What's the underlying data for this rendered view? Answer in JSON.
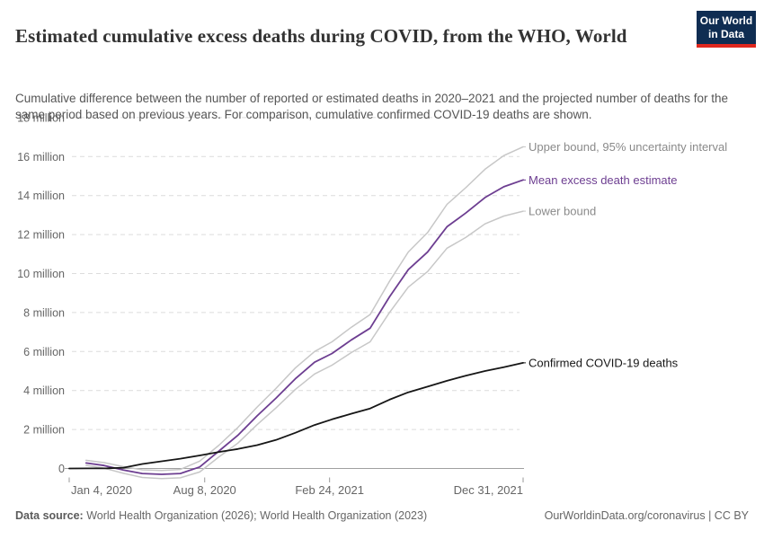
{
  "header": {
    "title": "Estimated cumulative excess deaths during COVID, from the WHO, World",
    "subtitle": "Cumulative difference between the number of reported or estimated deaths in 2020–2021 and the projected number of deaths for the same period based on previous years. For comparison, cumulative confirmed COVID-19 deaths are shown.",
    "logo": {
      "line1": "Our World",
      "line2": "in Data",
      "bg_color": "#0f2d52",
      "stripe_color": "#e0271e"
    }
  },
  "chart_data": {
    "type": "line",
    "title": "Estimated cumulative excess deaths during COVID, from the WHO, World",
    "x_axis": {
      "unit": "date",
      "range_days": [
        0,
        727
      ],
      "ticks": [
        {
          "day": 0,
          "label": "Jan 4, 2020"
        },
        {
          "day": 217,
          "label": "Aug 8, 2020"
        },
        {
          "day": 417,
          "label": "Feb 24, 2021"
        },
        {
          "day": 727,
          "label": "Dec 31, 2021"
        }
      ]
    },
    "y_axis": {
      "unit": "million deaths",
      "range": [
        -0.6,
        18
      ],
      "grid": true,
      "ticks": [
        {
          "v": 0,
          "label": "0"
        },
        {
          "v": 2,
          "label": "2 million"
        },
        {
          "v": 4,
          "label": "4 million"
        },
        {
          "v": 6,
          "label": "6 million"
        },
        {
          "v": 8,
          "label": "8 million"
        },
        {
          "v": 10,
          "label": "10 million"
        },
        {
          "v": 12,
          "label": "12 million"
        },
        {
          "v": 14,
          "label": "14 million"
        },
        {
          "v": 16,
          "label": "16 million"
        },
        {
          "v": 18,
          "label": "18 million"
        }
      ]
    },
    "legend_position": "right-end-labels",
    "series": [
      {
        "name": "upper-bound",
        "label": "Upper bound, 95% uncertainty interval",
        "color": "#c7c7c7",
        "label_color": "#8a8a8a",
        "width": 1.5,
        "points": [
          [
            27,
            0.42
          ],
          [
            56,
            0.3
          ],
          [
            87,
            0.09
          ],
          [
            117,
            -0.07
          ],
          [
            148,
            -0.1
          ],
          [
            178,
            -0.05
          ],
          [
            209,
            0.38
          ],
          [
            240,
            1.2
          ],
          [
            270,
            2.1
          ],
          [
            301,
            3.15
          ],
          [
            331,
            4.1
          ],
          [
            362,
            5.15
          ],
          [
            393,
            6.0
          ],
          [
            421,
            6.5
          ],
          [
            452,
            7.25
          ],
          [
            482,
            7.9
          ],
          [
            513,
            9.6
          ],
          [
            543,
            11.1
          ],
          [
            574,
            12.1
          ],
          [
            605,
            13.55
          ],
          [
            635,
            14.4
          ],
          [
            666,
            15.35
          ],
          [
            696,
            16.05
          ],
          [
            727,
            16.5
          ]
        ]
      },
      {
        "name": "lower-bound",
        "label": "Lower bound",
        "color": "#c7c7c7",
        "label_color": "#8a8a8a",
        "width": 1.5,
        "points": [
          [
            27,
            0.16
          ],
          [
            56,
            0.02
          ],
          [
            87,
            -0.25
          ],
          [
            117,
            -0.46
          ],
          [
            148,
            -0.52
          ],
          [
            178,
            -0.48
          ],
          [
            209,
            -0.18
          ],
          [
            240,
            0.6
          ],
          [
            270,
            1.3
          ],
          [
            301,
            2.25
          ],
          [
            331,
            3.1
          ],
          [
            362,
            4.05
          ],
          [
            393,
            4.85
          ],
          [
            421,
            5.3
          ],
          [
            452,
            5.95
          ],
          [
            482,
            6.5
          ],
          [
            513,
            8.0
          ],
          [
            543,
            9.3
          ],
          [
            574,
            10.1
          ],
          [
            605,
            11.3
          ],
          [
            635,
            11.85
          ],
          [
            666,
            12.55
          ],
          [
            696,
            12.95
          ],
          [
            727,
            13.2
          ]
        ]
      },
      {
        "name": "mean-excess-death-estimate",
        "label": "Mean excess death estimate",
        "color": "#6d3e91",
        "label_color": "#6d3e91",
        "width": 1.8,
        "points": [
          [
            27,
            0.28
          ],
          [
            56,
            0.15
          ],
          [
            87,
            -0.08
          ],
          [
            117,
            -0.26
          ],
          [
            148,
            -0.3
          ],
          [
            178,
            -0.26
          ],
          [
            209,
            0.08
          ],
          [
            240,
            0.9
          ],
          [
            270,
            1.7
          ],
          [
            301,
            2.7
          ],
          [
            331,
            3.6
          ],
          [
            362,
            4.6
          ],
          [
            393,
            5.45
          ],
          [
            421,
            5.9
          ],
          [
            452,
            6.6
          ],
          [
            482,
            7.2
          ],
          [
            513,
            8.8
          ],
          [
            543,
            10.2
          ],
          [
            574,
            11.1
          ],
          [
            605,
            12.4
          ],
          [
            635,
            13.1
          ],
          [
            666,
            13.9
          ],
          [
            696,
            14.45
          ],
          [
            727,
            14.8
          ]
        ]
      },
      {
        "name": "confirmed-covid-19-deaths",
        "label": "Confirmed COVID-19 deaths",
        "color": "#161616",
        "label_color": "#161616",
        "width": 1.8,
        "points": [
          [
            0,
            0
          ],
          [
            30,
            0.003
          ],
          [
            60,
            0.007
          ],
          [
            87,
            0.042
          ],
          [
            117,
            0.23
          ],
          [
            148,
            0.37
          ],
          [
            178,
            0.5
          ],
          [
            209,
            0.67
          ],
          [
            240,
            0.85
          ],
          [
            270,
            1.0
          ],
          [
            301,
            1.2
          ],
          [
            331,
            1.46
          ],
          [
            362,
            1.83
          ],
          [
            393,
            2.23
          ],
          [
            421,
            2.52
          ],
          [
            452,
            2.81
          ],
          [
            482,
            3.08
          ],
          [
            513,
            3.53
          ],
          [
            543,
            3.91
          ],
          [
            574,
            4.2
          ],
          [
            605,
            4.5
          ],
          [
            635,
            4.76
          ],
          [
            666,
            5.0
          ],
          [
            696,
            5.2
          ],
          [
            727,
            5.42
          ]
        ]
      }
    ],
    "style": {
      "gridline_color": "#dcdcdc",
      "zero_line_color": "#a0a0a0",
      "axis_text_color": "#666666",
      "tick_mark_color": "#999999"
    }
  },
  "footer": {
    "datasource_label": "Data source:",
    "datasource_text": " World Health Organization (2026); World Health Organization (2023)",
    "credit": "OurWorldinData.org/coronavirus | CC BY"
  }
}
